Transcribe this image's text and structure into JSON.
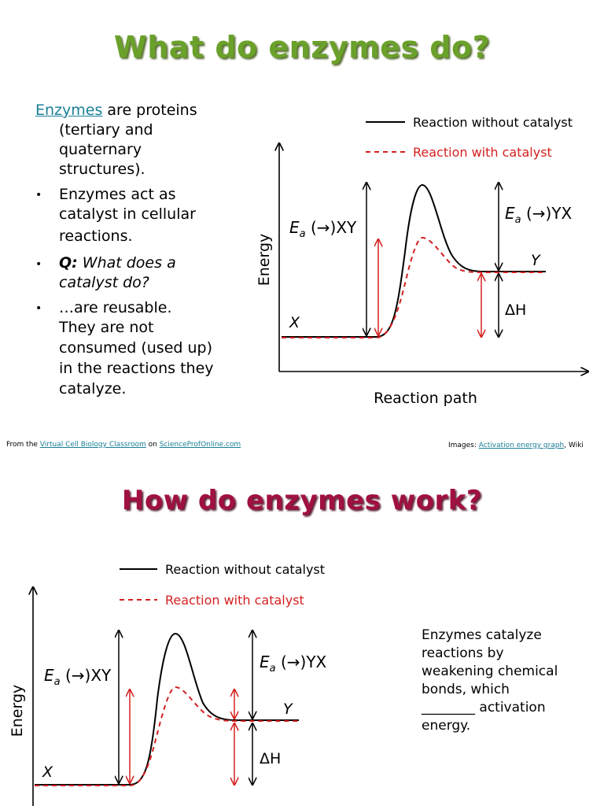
{
  "slide1": {
    "title": "What do enzymes do?",
    "intro_link": "Enzymes",
    "intro_rest_1": " are proteins",
    "intro_rest_2": "(tertiary and",
    "intro_rest_3": "quaternary",
    "intro_rest_4": "structures).",
    "bullets": [
      [
        "Enzymes act as",
        "catalyst in cellular",
        "reactions."
      ],
      [
        "Q:",
        " What does a",
        "catalyst do?"
      ],
      [
        "…are reusable.",
        "They are not",
        "consumed (used up)",
        "in the reactions they",
        "catalyze."
      ]
    ],
    "footer_left_prefix": "From the ",
    "footer_left_link1": "Virtual Cell Biology Classroom",
    "footer_left_mid": " on ",
    "footer_left_link2": "ScienceProfOnline.com",
    "footer_right_prefix": "Images: ",
    "footer_right_link": "Activation energy graph",
    "footer_right_suffix": ", Wiki"
  },
  "slide2": {
    "title": "How do enzymes work?",
    "text_lines": [
      "Enzymes catalyze",
      "reactions by",
      "weakening chemical",
      "bonds, which",
      "________ activation",
      "energy."
    ]
  },
  "graph": {
    "legend_solid": "Reaction without catalyst",
    "legend_dashed": "Reaction with catalyst",
    "ylabel": "Energy",
    "xlabel": "Reaction path",
    "label_x": "X",
    "label_y": "Y",
    "label_ea_fwd": "E",
    "label_ea_fwd_sub": "a",
    "label_ea_fwd_rest": " (→)XY",
    "label_ea_rev": "E",
    "label_ea_rev_sub": "a",
    "label_ea_rev_rest": " (→)YX",
    "label_dh": "ΔH",
    "colors": {
      "solid": "#000000",
      "dashed": "#d42020"
    }
  }
}
